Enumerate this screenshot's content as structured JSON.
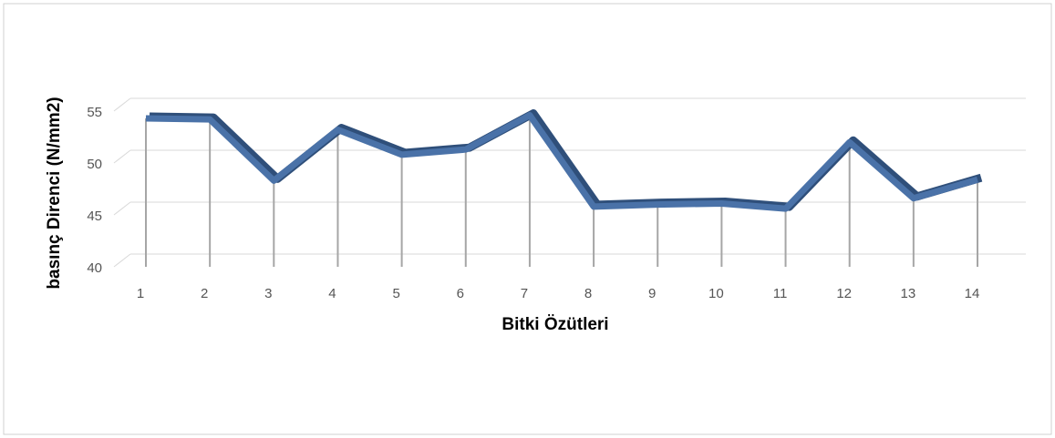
{
  "chart_data": {
    "type": "line",
    "x_label": "Bitki Özütleri",
    "y_label": "basınç Direnci (N/mm2)",
    "categories": [
      1,
      2,
      3,
      4,
      5,
      6,
      7,
      8,
      9,
      10,
      11,
      12,
      13,
      14
    ],
    "series": [
      {
        "name": null,
        "color": "#4a72a8",
        "values": [
          54.3,
          54.2,
          48.3,
          53.2,
          50.8,
          51.3,
          54.6,
          45.8,
          46.0,
          46.1,
          45.6,
          52.0,
          46.6,
          48.4
        ]
      }
    ],
    "ylim": [
      40,
      55
    ],
    "yticks": [
      40,
      45,
      50,
      55
    ],
    "grid": true
  }
}
